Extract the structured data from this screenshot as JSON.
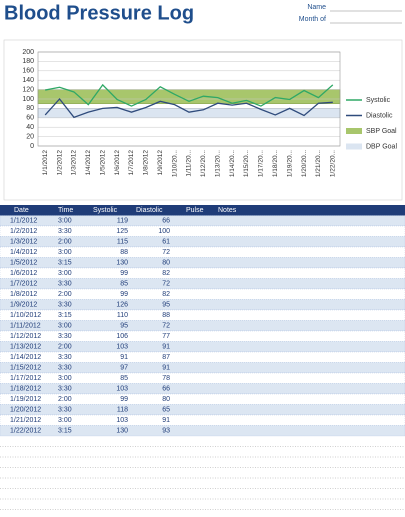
{
  "header": {
    "title": "Blood Pressure Log",
    "name_label": "Name",
    "month_label": "Month of"
  },
  "chart_data": {
    "type": "line",
    "categories": [
      "1/1/2012",
      "1/2/2012",
      "1/3/2012",
      "1/4/2012",
      "1/5/2012",
      "1/6/2012",
      "1/7/2012",
      "1/8/2012",
      "1/9/2012",
      "1/10/20...",
      "1/11/20...",
      "1/12/20...",
      "1/13/20...",
      "1/14/20...",
      "1/15/20...",
      "1/17/20...",
      "1/18/20...",
      "1/19/20...",
      "1/20/20...",
      "1/21/20...",
      "1/22/20..."
    ],
    "series": [
      {
        "name": "Systolic",
        "color": "#2fa866",
        "values": [
          119,
          125,
          115,
          88,
          130,
          99,
          85,
          99,
          126,
          110,
          95,
          106,
          103,
          91,
          97,
          85,
          103,
          99,
          118,
          103,
          130
        ]
      },
      {
        "name": "Diastolic",
        "color": "#2f4b7c",
        "values": [
          66,
          100,
          61,
          72,
          80,
          82,
          72,
          82,
          95,
          88,
          72,
          77,
          91,
          87,
          91,
          78,
          66,
          80,
          65,
          91,
          93
        ]
      }
    ],
    "bands": [
      {
        "name": "SBP Goal",
        "range": [
          90,
          120
        ],
        "color": "#a8c66c"
      },
      {
        "name": "DBP Goal",
        "range": [
          60,
          80
        ],
        "color": "#dbe5f1"
      }
    ],
    "ylim": [
      0,
      200
    ],
    "yticks": [
      0,
      20,
      40,
      60,
      80,
      100,
      120,
      140,
      160,
      180,
      200
    ],
    "grid": true
  },
  "table": {
    "columns": [
      "Date",
      "Time",
      "Systolic",
      "Diastolic",
      "Pulse",
      "Notes"
    ],
    "rows": [
      [
        "1/1/2012",
        "3:00",
        119,
        66
      ],
      [
        "1/2/2012",
        "3:30",
        125,
        100
      ],
      [
        "1/3/2012",
        "2:00",
        115,
        61
      ],
      [
        "1/4/2012",
        "3:00",
        88,
        72
      ],
      [
        "1/5/2012",
        "3:15",
        130,
        80
      ],
      [
        "1/6/2012",
        "3:00",
        99,
        82
      ],
      [
        "1/7/2012",
        "3:30",
        85,
        72
      ],
      [
        "1/8/2012",
        "2:00",
        99,
        82
      ],
      [
        "1/9/2012",
        "3:30",
        126,
        95
      ],
      [
        "1/10/2012",
        "3:15",
        110,
        88
      ],
      [
        "1/11/2012",
        "3:00",
        95,
        72
      ],
      [
        "1/12/2012",
        "3:30",
        106,
        77
      ],
      [
        "1/13/2012",
        "2:00",
        103,
        91
      ],
      [
        "1/14/2012",
        "3:30",
        91,
        87
      ],
      [
        "1/15/2012",
        "3:30",
        97,
        91
      ],
      [
        "1/17/2012",
        "3:00",
        85,
        78
      ],
      [
        "1/18/2012",
        "3:30",
        103,
        66
      ],
      [
        "1/19/2012",
        "2:00",
        99,
        80
      ],
      [
        "1/20/2012",
        "3:30",
        118,
        65
      ],
      [
        "1/21/2012",
        "3:00",
        103,
        91
      ],
      [
        "1/22/2012",
        "3:15",
        130,
        93
      ]
    ]
  }
}
